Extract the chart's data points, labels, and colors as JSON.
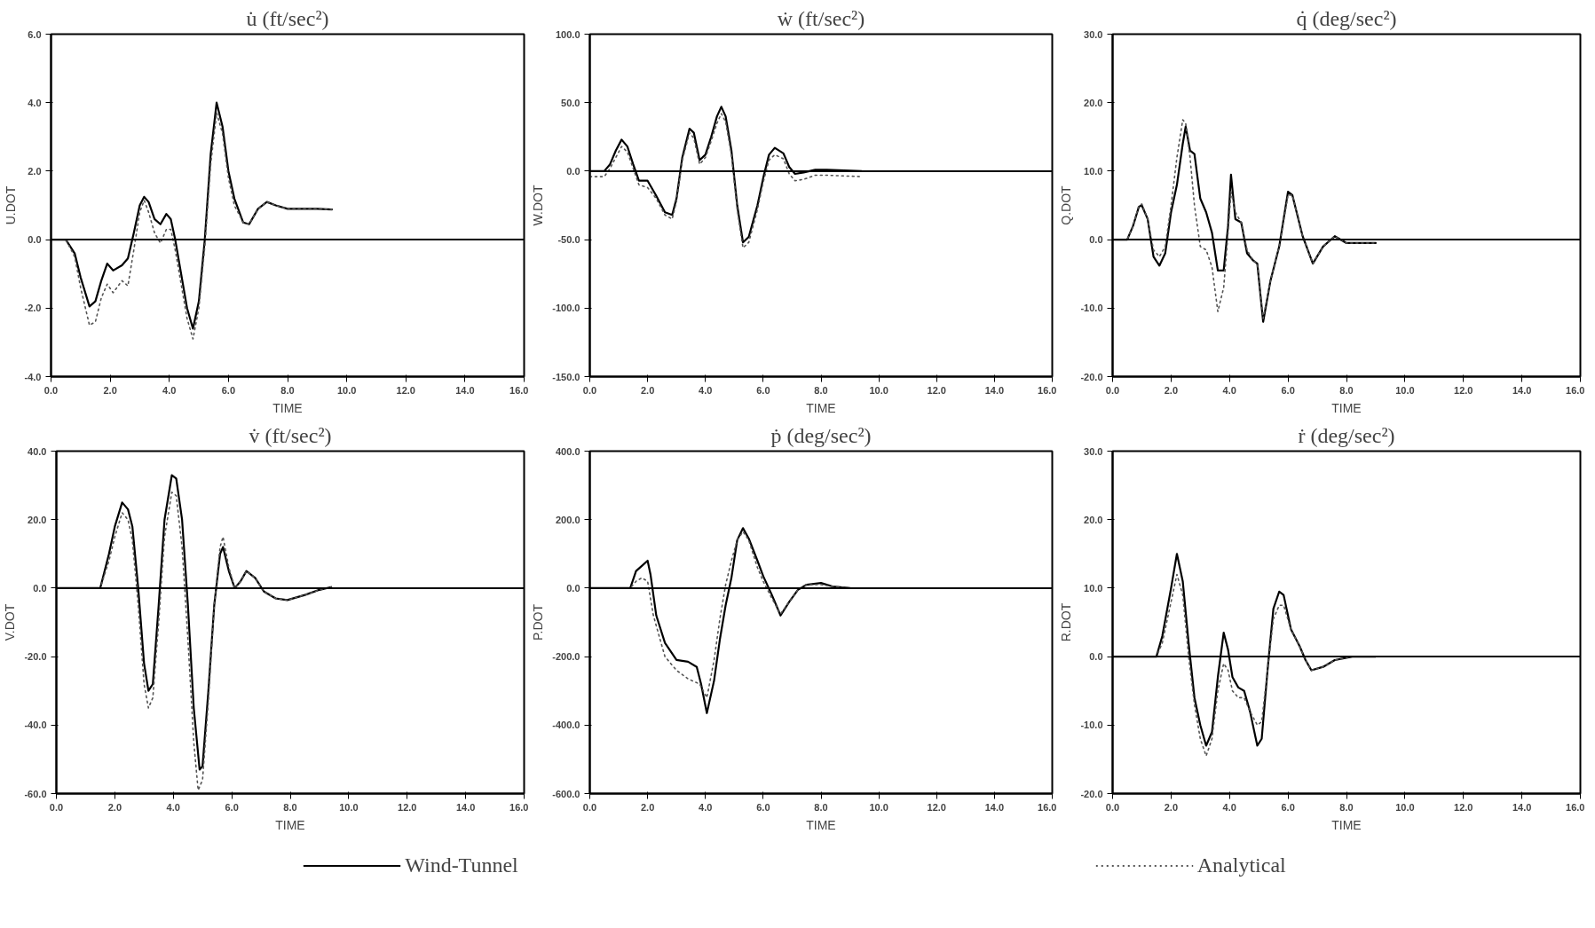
{
  "chart_data": [
    {
      "type": "line",
      "title": "u̇ (ft/sec²)",
      "xlabel": "TIME",
      "ylabel": "U.DOT",
      "xlim": [
        0,
        16
      ],
      "ylim": [
        -4,
        6
      ],
      "xticks": [
        {
          "value": 0,
          "label": "0.0"
        },
        {
          "value": 2,
          "label": "2.0"
        },
        {
          "value": 4,
          "label": "4.0"
        },
        {
          "value": 6,
          "label": "6.0"
        },
        {
          "value": 8,
          "label": "8.0"
        },
        {
          "value": 10,
          "label": "10.0"
        },
        {
          "value": 12,
          "label": "12.0"
        },
        {
          "value": 14,
          "label": "14.0"
        },
        {
          "value": 16,
          "label": "16.0"
        }
      ],
      "yticks": [
        {
          "value": -4,
          "label": "-4.0"
        },
        {
          "value": -2,
          "label": "-2.0"
        },
        {
          "value": 0,
          "label": "0.0"
        },
        {
          "value": 2,
          "label": "2.0"
        },
        {
          "value": 4,
          "label": "4.0"
        },
        {
          "value": 6,
          "label": "6.0"
        }
      ],
      "ref_lines": [
        {
          "axis": "y",
          "value": 0,
          "color": "#000000"
        }
      ],
      "legend": "bottom",
      "series": [
        {
          "name": "Wind-Tunnel",
          "color": "#000000",
          "line_style": "solid",
          "x": [
            0,
            0.5,
            0.8,
            1.0,
            1.3,
            1.5,
            1.7,
            1.9,
            2.1,
            2.4,
            2.6,
            2.8,
            3.0,
            3.15,
            3.3,
            3.5,
            3.7,
            3.9,
            4.05,
            4.2,
            4.4,
            4.6,
            4.8,
            5.0,
            5.2,
            5.4,
            5.6,
            5.8,
            6.0,
            6.2,
            6.5,
            6.7,
            7.0,
            7.3,
            7.6,
            8.0,
            9.0,
            9.5
          ],
          "values": [
            0,
            0,
            -0.4,
            -1.1,
            -1.95,
            -1.8,
            -1.2,
            -0.7,
            -0.9,
            -0.75,
            -0.55,
            0.2,
            1.0,
            1.25,
            1.1,
            0.6,
            0.45,
            0.75,
            0.6,
            0.0,
            -1.0,
            -2.0,
            -2.6,
            -1.8,
            0.0,
            2.5,
            4.0,
            3.3,
            2.0,
            1.2,
            0.5,
            0.45,
            0.9,
            1.1,
            1.0,
            0.9,
            0.9,
            0.88
          ]
        },
        {
          "name": "Analytical",
          "color": "#555555",
          "line_style": "dotted",
          "x": [
            0,
            0.5,
            0.8,
            1.0,
            1.3,
            1.5,
            1.7,
            1.9,
            2.1,
            2.4,
            2.6,
            2.8,
            3.0,
            3.15,
            3.3,
            3.5,
            3.7,
            3.9,
            4.05,
            4.2,
            4.4,
            4.6,
            4.8,
            5.0,
            5.2,
            5.4,
            5.6,
            5.8,
            6.0,
            6.2,
            6.5,
            6.7,
            7.0,
            7.3,
            7.6,
            8.0,
            9.0,
            9.5
          ],
          "values": [
            0,
            0,
            -0.5,
            -1.4,
            -2.5,
            -2.4,
            -1.7,
            -1.3,
            -1.55,
            -1.2,
            -1.35,
            -0.3,
            0.8,
            1.15,
            0.8,
            0.2,
            -0.1,
            0.3,
            0.3,
            -0.3,
            -1.3,
            -2.3,
            -2.9,
            -2.0,
            -0.2,
            2.2,
            3.7,
            3.1,
            1.8,
            1.0,
            0.5,
            0.45,
            0.9,
            1.1,
            1.0,
            0.9,
            0.9,
            0.88
          ]
        }
      ]
    },
    {
      "type": "line",
      "title": "ẇ (ft/sec²)",
      "xlabel": "TIME",
      "ylabel": "W.DOT",
      "xlim": [
        0,
        16
      ],
      "ylim": [
        -150,
        100
      ],
      "xticks": [
        {
          "value": 0,
          "label": "0.0"
        },
        {
          "value": 2,
          "label": "2.0"
        },
        {
          "value": 4,
          "label": "4.0"
        },
        {
          "value": 6,
          "label": "6.0"
        },
        {
          "value": 8,
          "label": "8.0"
        },
        {
          "value": 10,
          "label": "10.0"
        },
        {
          "value": 12,
          "label": "12.0"
        },
        {
          "value": 14,
          "label": "14.0"
        },
        {
          "value": 16,
          "label": "16.0"
        }
      ],
      "yticks": [
        {
          "value": -150,
          "label": "-150.0"
        },
        {
          "value": -100,
          "label": "-100.0"
        },
        {
          "value": -50,
          "label": "-50.0"
        },
        {
          "value": 0,
          "label": "0.0"
        },
        {
          "value": 50,
          "label": "50.0"
        },
        {
          "value": 100,
          "label": "100.0"
        }
      ],
      "ref_lines": [
        {
          "axis": "y",
          "value": 0,
          "color": "#000000"
        }
      ],
      "series": [
        {
          "color": "#000000",
          "line_style": "solid",
          "x": [
            0,
            0.5,
            0.7,
            0.9,
            1.1,
            1.3,
            1.5,
            1.7,
            2.0,
            2.3,
            2.6,
            2.85,
            3.0,
            3.2,
            3.45,
            3.6,
            3.8,
            4.0,
            4.2,
            4.4,
            4.55,
            4.7,
            4.9,
            5.1,
            5.3,
            5.5,
            5.8,
            6.0,
            6.2,
            6.4,
            6.7,
            6.9,
            7.1,
            7.4,
            7.8,
            8.2,
            9.4
          ],
          "values": [
            0,
            0,
            5,
            15,
            23,
            18,
            5,
            -7,
            -7,
            -18,
            -30,
            -32,
            -20,
            10,
            31,
            28,
            8,
            12,
            25,
            40,
            47,
            40,
            15,
            -25,
            -52,
            -48,
            -25,
            -5,
            12,
            17,
            13,
            3,
            -2,
            -1,
            1,
            1,
            0
          ]
        },
        {
          "color": "#555555",
          "line_style": "dotted",
          "x": [
            0,
            0.5,
            0.7,
            0.9,
            1.1,
            1.3,
            1.5,
            1.7,
            2.0,
            2.3,
            2.6,
            2.85,
            3.0,
            3.2,
            3.45,
            3.6,
            3.8,
            4.0,
            4.2,
            4.4,
            4.55,
            4.7,
            4.9,
            5.1,
            5.3,
            5.5,
            5.8,
            6.0,
            6.2,
            6.4,
            6.7,
            6.9,
            7.1,
            7.4,
            7.8,
            8.2,
            9.4
          ],
          "values": [
            -4,
            -4,
            2,
            10,
            18,
            14,
            2,
            -10,
            -12,
            -20,
            -32,
            -35,
            -22,
            8,
            28,
            24,
            5,
            10,
            22,
            35,
            42,
            36,
            12,
            -28,
            -56,
            -52,
            -28,
            -8,
            8,
            12,
            9,
            -2,
            -7,
            -6,
            -3,
            -3,
            -4
          ]
        }
      ]
    },
    {
      "type": "line",
      "title": "q̇ (deg/sec²)",
      "xlabel": "TIME",
      "ylabel": "Q.DOT",
      "xlim": [
        0,
        16
      ],
      "ylim": [
        -20,
        30
      ],
      "xticks": [
        {
          "value": 0,
          "label": "0.0"
        },
        {
          "value": 2,
          "label": "2.0"
        },
        {
          "value": 4,
          "label": "4.0"
        },
        {
          "value": 6,
          "label": "6.0"
        },
        {
          "value": 8,
          "label": "8.0"
        },
        {
          "value": 10,
          "label": "10.0"
        },
        {
          "value": 12,
          "label": "12.0"
        },
        {
          "value": 14,
          "label": "14.0"
        },
        {
          "value": 16,
          "label": "16.0"
        }
      ],
      "yticks": [
        {
          "value": -20,
          "label": "-20.0"
        },
        {
          "value": -10,
          "label": "-10.0"
        },
        {
          "value": 0,
          "label": "0.0"
        },
        {
          "value": 10,
          "label": "10.0"
        },
        {
          "value": 20,
          "label": "20.0"
        },
        {
          "value": 30,
          "label": "30.0"
        }
      ],
      "ref_lines": [
        {
          "axis": "y",
          "value": 0,
          "color": "#000000"
        }
      ],
      "series": [
        {
          "color": "#000000",
          "line_style": "solid",
          "x": [
            0,
            0.5,
            0.7,
            0.9,
            1.0,
            1.2,
            1.4,
            1.6,
            1.8,
            2.0,
            2.2,
            2.4,
            2.5,
            2.65,
            2.8,
            3.0,
            3.2,
            3.4,
            3.6,
            3.8,
            3.95,
            4.05,
            4.2,
            4.4,
            4.6,
            4.8,
            4.95,
            5.15,
            5.4,
            5.7,
            6.0,
            6.15,
            6.5,
            6.85,
            7.2,
            7.6,
            8.0,
            9.0
          ],
          "values": [
            0,
            0,
            2,
            4.8,
            5,
            3,
            -2.5,
            -3.8,
            -2,
            4,
            8,
            14,
            16.5,
            13,
            12.5,
            6,
            4,
            1,
            -4.5,
            -4.5,
            2,
            9.5,
            3,
            2.5,
            -2,
            -3,
            -3.5,
            -12,
            -6,
            -1,
            7,
            6.5,
            0.5,
            -3.5,
            -1,
            0.5,
            -0.5,
            -0.5
          ]
        },
        {
          "color": "#555555",
          "line_style": "dotted",
          "x": [
            0,
            0.5,
            0.7,
            0.9,
            1.0,
            1.2,
            1.4,
            1.6,
            1.8,
            2.0,
            2.2,
            2.4,
            2.5,
            2.65,
            2.8,
            3.0,
            3.2,
            3.4,
            3.6,
            3.8,
            3.95,
            4.05,
            4.2,
            4.4,
            4.6,
            4.8,
            4.95,
            5.15,
            5.4,
            5.7,
            6.0,
            6.15,
            6.5,
            6.85,
            7.2,
            7.6,
            8.0,
            9.0
          ],
          "values": [
            0,
            0,
            2,
            5,
            5.2,
            3,
            -1.5,
            -2.5,
            -1,
            5,
            12,
            17.5,
            17,
            12,
            5,
            -1,
            -1.5,
            -4,
            -10.5,
            -7,
            1,
            7,
            4,
            2.5,
            -1.5,
            -3,
            -3.5,
            -11.5,
            -6,
            -1,
            6.5,
            6.5,
            0.5,
            -3.5,
            -1,
            0.5,
            -0.5,
            -0.5
          ]
        }
      ]
    },
    {
      "type": "line",
      "title": "v̇ (ft/sec²)",
      "xlabel": "TIME",
      "ylabel": "V.DOT",
      "xlim": [
        0,
        16
      ],
      "ylim": [
        -60,
        40
      ],
      "xticks": [
        {
          "value": 0,
          "label": "0.0"
        },
        {
          "value": 2,
          "label": "2.0"
        },
        {
          "value": 4,
          "label": "4.0"
        },
        {
          "value": 6,
          "label": "6.0"
        },
        {
          "value": 8,
          "label": "8.0"
        },
        {
          "value": 10,
          "label": "10.0"
        },
        {
          "value": 12,
          "label": "12.0"
        },
        {
          "value": 14,
          "label": "14.0"
        },
        {
          "value": 16,
          "label": "16.0"
        }
      ],
      "yticks": [
        {
          "value": -60,
          "label": "-60.0"
        },
        {
          "value": -40,
          "label": "-40.0"
        },
        {
          "value": -20,
          "label": "-20.0"
        },
        {
          "value": 0,
          "label": "0.0"
        },
        {
          "value": 20,
          "label": "20.0"
        },
        {
          "value": 40,
          "label": "40.0"
        }
      ],
      "ref_lines": [
        {
          "axis": "y",
          "value": 0,
          "color": "#000000"
        }
      ],
      "series": [
        {
          "color": "#000000",
          "line_style": "solid",
          "x": [
            0,
            1.5,
            1.8,
            2.0,
            2.25,
            2.45,
            2.6,
            2.8,
            3.0,
            3.15,
            3.3,
            3.5,
            3.7,
            3.95,
            4.1,
            4.3,
            4.5,
            4.7,
            4.9,
            5.0,
            5.2,
            5.4,
            5.6,
            5.7,
            5.9,
            6.1,
            6.3,
            6.5,
            6.8,
            7.1,
            7.5,
            7.9,
            8.5,
            9.0,
            9.4
          ],
          "values": [
            0,
            0,
            10,
            18,
            25,
            23,
            18,
            0,
            -22,
            -30,
            -28,
            -5,
            20,
            33,
            32,
            20,
            -5,
            -35,
            -53,
            -52,
            -30,
            -5,
            10,
            12,
            5,
            0,
            2,
            5,
            3,
            -1,
            -3,
            -3.5,
            -2,
            -0.5,
            0.3
          ]
        },
        {
          "color": "#555555",
          "line_style": "dotted",
          "x": [
            0,
            1.5,
            1.8,
            2.0,
            2.25,
            2.45,
            2.6,
            2.8,
            3.0,
            3.15,
            3.3,
            3.5,
            3.7,
            3.95,
            4.1,
            4.3,
            4.5,
            4.7,
            4.85,
            5.0,
            5.2,
            5.4,
            5.6,
            5.7,
            5.9,
            6.1,
            6.3,
            6.5,
            6.8,
            7.1,
            7.5,
            7.9,
            8.5,
            9.0,
            9.4
          ],
          "values": [
            0,
            0,
            8,
            15,
            22,
            20,
            14,
            -5,
            -28,
            -35,
            -32,
            -10,
            15,
            28,
            27,
            12,
            -15,
            -45,
            -59,
            -56,
            -33,
            -5,
            12,
            15,
            6,
            0,
            2,
            5,
            3,
            -1,
            -3,
            -3.5,
            -2,
            -0.5,
            0.3
          ]
        }
      ]
    },
    {
      "type": "line",
      "title": "ṗ (deg/sec²)",
      "xlabel": "TIME",
      "ylabel": "P.DOT",
      "xlim": [
        0,
        16
      ],
      "ylim": [
        -600,
        400
      ],
      "xticks": [
        {
          "value": 0,
          "label": "0.0"
        },
        {
          "value": 2,
          "label": "2.0"
        },
        {
          "value": 4,
          "label": "4.0"
        },
        {
          "value": 6,
          "label": "6.0"
        },
        {
          "value": 8,
          "label": "8.0"
        },
        {
          "value": 10,
          "label": "10.0"
        },
        {
          "value": 12,
          "label": "12.0"
        },
        {
          "value": 14,
          "label": "14.0"
        },
        {
          "value": 16,
          "label": "16.0"
        }
      ],
      "yticks": [
        {
          "value": -600,
          "label": "-600.0"
        },
        {
          "value": -400,
          "label": "-400.0"
        },
        {
          "value": -200,
          "label": "-200.0"
        },
        {
          "value": 0,
          "label": "0.0"
        },
        {
          "value": 200,
          "label": "200.0"
        },
        {
          "value": 400,
          "label": "400.0"
        }
      ],
      "ref_lines": [
        {
          "axis": "y",
          "value": 0,
          "color": "#000000"
        }
      ],
      "series": [
        {
          "color": "#000000",
          "line_style": "solid",
          "x": [
            0,
            1.4,
            1.6,
            1.8,
            2.0,
            2.1,
            2.3,
            2.6,
            3.0,
            3.4,
            3.7,
            3.85,
            4.05,
            4.3,
            4.5,
            4.7,
            4.9,
            5.1,
            5.3,
            5.5,
            5.8,
            6.0,
            6.3,
            6.6,
            6.9,
            7.2,
            7.5,
            8.0,
            8.4,
            9.0
          ],
          "values": [
            0,
            0,
            50,
            65,
            80,
            40,
            -80,
            -160,
            -210,
            -215,
            -230,
            -280,
            -365,
            -270,
            -150,
            -50,
            30,
            140,
            175,
            145,
            80,
            35,
            -20,
            -80,
            -40,
            -5,
            10,
            15,
            5,
            0
          ]
        },
        {
          "color": "#555555",
          "line_style": "dotted",
          "x": [
            0,
            1.4,
            1.6,
            1.8,
            2.0,
            2.2,
            2.6,
            3.0,
            3.4,
            3.8,
            4.05,
            4.3,
            4.5,
            4.7,
            4.9,
            5.1,
            5.3,
            5.5,
            5.8,
            6.0,
            6.3,
            6.6,
            6.9,
            7.2,
            7.5,
            8.0,
            8.4,
            9.0
          ],
          "values": [
            0,
            0,
            20,
            30,
            20,
            -80,
            -200,
            -240,
            -265,
            -280,
            -320,
            -210,
            -90,
            10,
            80,
            140,
            165,
            140,
            60,
            20,
            -30,
            -75,
            -40,
            -5,
            10,
            10,
            5,
            0
          ]
        }
      ]
    },
    {
      "type": "line",
      "title": "ṙ (deg/sec²)",
      "xlabel": "TIME",
      "ylabel": "R.DOT",
      "xlim": [
        0,
        16
      ],
      "ylim": [
        -20,
        30
      ],
      "xticks": [
        {
          "value": 0,
          "label": "0.0"
        },
        {
          "value": 2,
          "label": "2.0"
        },
        {
          "value": 4,
          "label": "4.0"
        },
        {
          "value": 6,
          "label": "6.0"
        },
        {
          "value": 8,
          "label": "8.0"
        },
        {
          "value": 10,
          "label": "10.0"
        },
        {
          "value": 12,
          "label": "12.0"
        },
        {
          "value": 14,
          "label": "14.0"
        },
        {
          "value": 16,
          "label": "16.0"
        }
      ],
      "yticks": [
        {
          "value": -20,
          "label": "-20.0"
        },
        {
          "value": -10,
          "label": "-10.0"
        },
        {
          "value": 0,
          "label": "0.0"
        },
        {
          "value": 10,
          "label": "10.0"
        },
        {
          "value": 20,
          "label": "20.0"
        },
        {
          "value": 30,
          "label": "30.0"
        }
      ],
      "ref_lines": [
        {
          "axis": "y",
          "value": 0,
          "color": "#000000"
        }
      ],
      "series": [
        {
          "color": "#000000",
          "line_style": "solid",
          "x": [
            0,
            1.5,
            1.7,
            2.0,
            2.2,
            2.4,
            2.6,
            2.8,
            3.0,
            3.2,
            3.4,
            3.6,
            3.8,
            3.95,
            4.1,
            4.3,
            4.5,
            4.7,
            4.95,
            5.1,
            5.3,
            5.5,
            5.7,
            5.85,
            6.1,
            6.4,
            6.6,
            6.8,
            7.2,
            7.6,
            8.2,
            9.0
          ],
          "values": [
            0,
            0,
            3,
            10,
            15,
            11,
            2,
            -6,
            -10,
            -13,
            -11,
            -3,
            3.5,
            1,
            -3,
            -4.5,
            -5,
            -8,
            -13,
            -12,
            -2,
            7,
            9.5,
            9,
            4,
            1.5,
            -0.5,
            -2,
            -1.5,
            -0.5,
            0,
            0
          ]
        },
        {
          "color": "#555555",
          "line_style": "dotted",
          "x": [
            0,
            1.5,
            1.7,
            2.0,
            2.2,
            2.4,
            2.6,
            2.8,
            3.0,
            3.2,
            3.4,
            3.6,
            3.8,
            3.95,
            4.1,
            4.3,
            4.5,
            4.7,
            4.95,
            5.1,
            5.3,
            5.5,
            5.7,
            5.85,
            6.1,
            6.4,
            6.6,
            6.8,
            7.2,
            7.6,
            8.2,
            9.0
          ],
          "values": [
            0,
            0,
            2,
            8,
            12,
            9,
            0,
            -7,
            -12,
            -14.5,
            -12,
            -5,
            -1,
            -2,
            -5,
            -6,
            -6,
            -8,
            -10,
            -9.5,
            -2,
            5.5,
            7.5,
            7.5,
            4,
            1.5,
            -0.5,
            -2,
            -1.5,
            -0.5,
            0,
            0
          ]
        }
      ]
    }
  ]
}
